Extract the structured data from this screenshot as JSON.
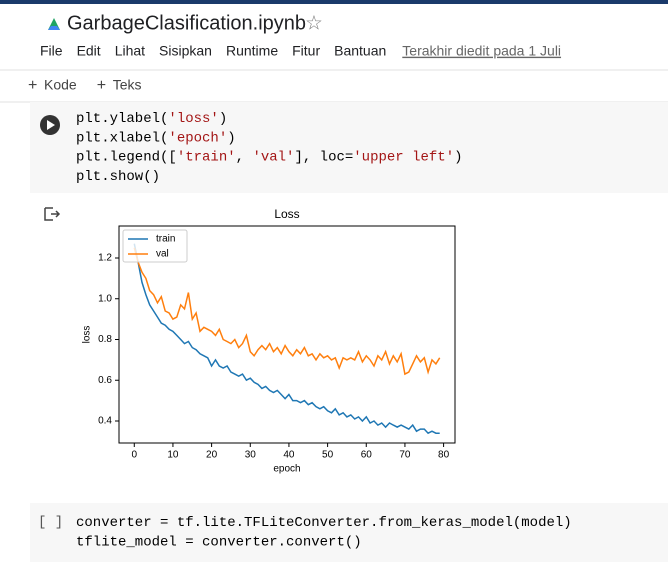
{
  "header": {
    "title": "GarbageClasification.ipynb",
    "menu": [
      "File",
      "Edit",
      "Lihat",
      "Sisipkan",
      "Runtime",
      "Fitur",
      "Bantuan"
    ],
    "last_edited": "Terakhir diedit pada 1 Juli"
  },
  "toolbar": [
    "Kode",
    "Teks"
  ],
  "cell1": {
    "lines": [
      [
        "plt.ylabel(",
        "'loss'",
        ")"
      ],
      [
        "plt.xlabel(",
        "'epoch'",
        ")"
      ],
      [
        "plt.legend([",
        "'train'",
        ", ",
        "'val'",
        "], loc=",
        "'upper left'",
        ")"
      ],
      [
        "plt.show()"
      ]
    ]
  },
  "chart_data": {
    "type": "line",
    "title": "Loss",
    "x_label": "epoch",
    "y_label": "loss",
    "x": [
      0,
      1,
      2,
      3,
      4,
      5,
      6,
      7,
      8,
      9,
      10,
      11,
      12,
      13,
      14,
      15,
      16,
      17,
      18,
      19,
      20,
      21,
      22,
      23,
      24,
      25,
      26,
      27,
      28,
      29,
      30,
      31,
      32,
      33,
      34,
      35,
      36,
      37,
      38,
      39,
      40,
      41,
      42,
      43,
      44,
      45,
      46,
      47,
      48,
      49,
      50,
      51,
      52,
      53,
      54,
      55,
      56,
      57,
      58,
      59,
      60,
      61,
      62,
      63,
      64,
      65,
      66,
      67,
      68,
      69,
      70,
      71,
      72,
      73,
      74,
      75,
      76,
      77,
      78,
      79
    ],
    "series": [
      {
        "name": "train",
        "color": "#1f77b4",
        "values": [
          1.27,
          1.18,
          1.08,
          1.02,
          0.97,
          0.94,
          0.91,
          0.88,
          0.87,
          0.85,
          0.84,
          0.82,
          0.8,
          0.78,
          0.79,
          0.76,
          0.75,
          0.73,
          0.72,
          0.71,
          0.67,
          0.7,
          0.67,
          0.66,
          0.67,
          0.64,
          0.63,
          0.62,
          0.63,
          0.6,
          0.61,
          0.59,
          0.58,
          0.56,
          0.57,
          0.55,
          0.54,
          0.55,
          0.53,
          0.51,
          0.53,
          0.5,
          0.5,
          0.49,
          0.5,
          0.48,
          0.49,
          0.47,
          0.46,
          0.47,
          0.45,
          0.44,
          0.46,
          0.43,
          0.44,
          0.42,
          0.43,
          0.41,
          0.42,
          0.4,
          0.42,
          0.39,
          0.4,
          0.38,
          0.39,
          0.37,
          0.39,
          0.38,
          0.37,
          0.38,
          0.37,
          0.36,
          0.38,
          0.35,
          0.36,
          0.36,
          0.34,
          0.35,
          0.34,
          0.34
        ]
      },
      {
        "name": "val",
        "color": "#ff7f0e",
        "values": [
          1.25,
          1.18,
          1.13,
          1.1,
          1.04,
          1.02,
          0.98,
          1.01,
          0.94,
          0.93,
          0.9,
          0.91,
          0.97,
          0.95,
          1.03,
          0.9,
          0.93,
          0.84,
          0.86,
          0.85,
          0.84,
          0.82,
          0.85,
          0.8,
          0.79,
          0.78,
          0.8,
          0.76,
          0.78,
          0.82,
          0.74,
          0.72,
          0.75,
          0.77,
          0.75,
          0.78,
          0.74,
          0.76,
          0.73,
          0.77,
          0.74,
          0.72,
          0.75,
          0.73,
          0.76,
          0.72,
          0.73,
          0.7,
          0.73,
          0.71,
          0.72,
          0.7,
          0.71,
          0.66,
          0.71,
          0.7,
          0.71,
          0.7,
          0.74,
          0.69,
          0.72,
          0.7,
          0.67,
          0.72,
          0.7,
          0.74,
          0.68,
          0.72,
          0.69,
          0.73,
          0.63,
          0.64,
          0.68,
          0.72,
          0.69,
          0.71,
          0.64,
          0.7,
          0.68,
          0.71
        ]
      }
    ],
    "xlim": [
      -3.95,
      82.95
    ],
    "xticks": [
      0,
      10,
      20,
      30,
      40,
      50,
      60,
      70,
      80
    ],
    "ylim": [
      0.292,
      1.357
    ],
    "yticks": [
      0.4,
      0.6,
      0.8,
      {
        "value": 1,
        "label": "1.0"
      },
      1.2
    ],
    "legend": "upper left"
  },
  "cell2": {
    "prompt": "[ ]",
    "lines": [
      [
        "converter = tf.lite.TFLiteConverter.from_keras_model(model)"
      ],
      [
        "tflite_model = converter.convert()"
      ]
    ]
  }
}
